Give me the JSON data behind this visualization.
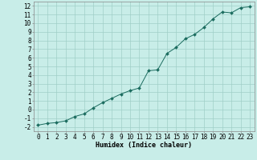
{
  "x": [
    0,
    1,
    2,
    3,
    4,
    5,
    6,
    7,
    8,
    9,
    10,
    11,
    12,
    13,
    14,
    15,
    16,
    17,
    18,
    19,
    20,
    21,
    22,
    23
  ],
  "y": [
    -1.8,
    -1.6,
    -1.5,
    -1.3,
    -0.8,
    -0.5,
    0.2,
    0.8,
    1.3,
    1.8,
    2.2,
    2.5,
    4.5,
    4.6,
    6.5,
    7.2,
    8.2,
    8.7,
    9.5,
    10.5,
    11.3,
    11.2,
    11.8,
    11.9
  ],
  "line_color": "#1a6b5e",
  "marker": "D",
  "marker_size": 2,
  "bg_color": "#c8ede8",
  "grid_color": "#a0cfc8",
  "xlabel": "Humidex (Indice chaleur)",
  "ylabel": "",
  "xlim": [
    -0.5,
    23.5
  ],
  "ylim": [
    -2.5,
    12.5
  ],
  "yticks": [
    -2,
    -1,
    0,
    1,
    2,
    3,
    4,
    5,
    6,
    7,
    8,
    9,
    10,
    11,
    12
  ],
  "xticks": [
    0,
    1,
    2,
    3,
    4,
    5,
    6,
    7,
    8,
    9,
    10,
    11,
    12,
    13,
    14,
    15,
    16,
    17,
    18,
    19,
    20,
    21,
    22,
    23
  ],
  "label_fontsize": 6,
  "tick_fontsize": 5.5
}
